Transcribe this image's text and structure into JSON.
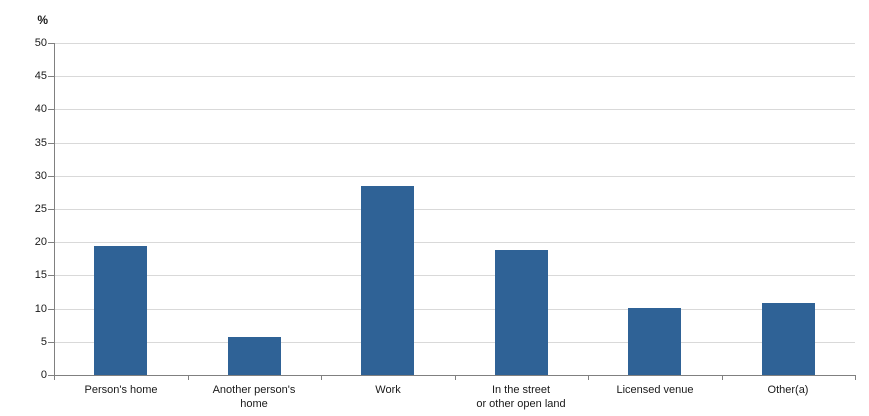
{
  "chart_data": {
    "type": "bar",
    "ylabel": "%",
    "categories": [
      "Person's home",
      "Another person's\nhome",
      "Work",
      "In the street\nor other open land",
      "Licensed venue",
      "Other(a)"
    ],
    "values": [
      19.4,
      5.7,
      28.4,
      18.9,
      10.1,
      10.8
    ],
    "ylim": [
      0,
      50
    ],
    "ytick_step": 5,
    "grid": true,
    "legend": "none"
  },
  "colors": {
    "bar": "#2f6296",
    "gridline": "#d9d9d9",
    "axis": "#808080",
    "text": "#1a1a1a",
    "background": "#ffffff"
  }
}
